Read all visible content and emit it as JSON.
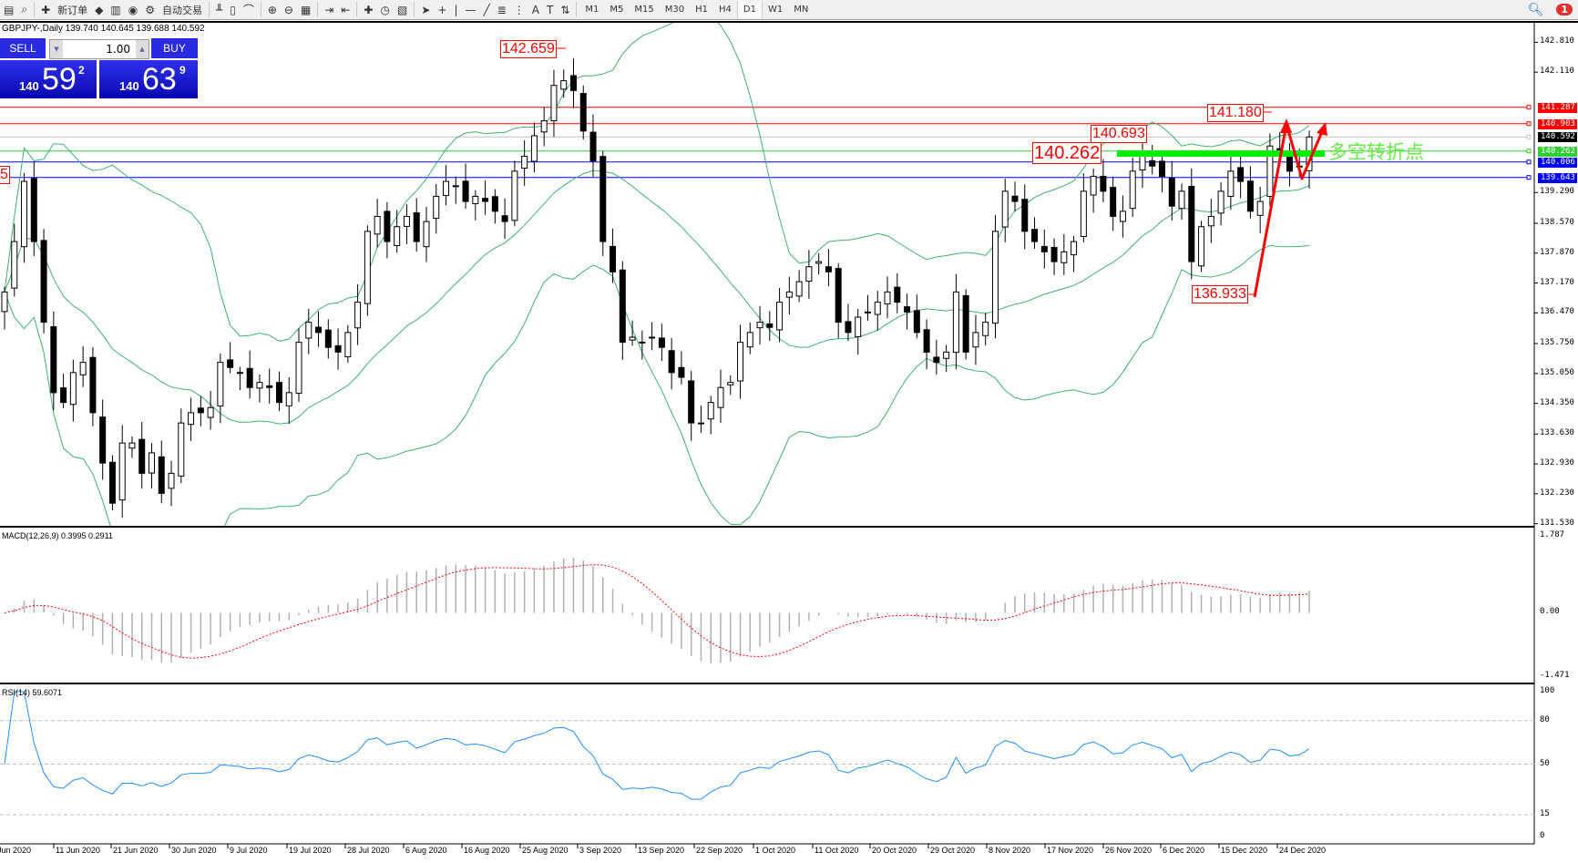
{
  "toolbar": {
    "icons": [
      "new-chart-icon",
      "profiles-icon",
      "new-order-icon",
      "navigator-icon",
      "market-watch-icon",
      "signals-icon",
      "autotrade-icon",
      "bar-chart-icon",
      "candlestick-icon",
      "line-chart-icon",
      "zoom-in-icon",
      "zoom-out-icon",
      "tile-icon",
      "autoscroll-icon",
      "chart-shift-icon",
      "indicators-icon",
      "periods-icon",
      "templates-icon",
      "cursor-icon",
      "crosshair-icon",
      "vertical-line-icon",
      "horizontal-line-icon",
      "trendline-icon",
      "fibonacci-icon",
      "fibo-fan-icon",
      "text-icon",
      "text-label-icon",
      "arrows-icon"
    ],
    "new_order": "新订单",
    "autotrade": "自动交易",
    "timeframes": [
      "M1",
      "M5",
      "M15",
      "M30",
      "H1",
      "H4",
      "D1",
      "W1",
      "MN"
    ],
    "active_timeframe": "D1",
    "notification_count": "1"
  },
  "chart": {
    "title": "GBPJPY-,Daily  139.740 140.645 139.688 140.592",
    "oneclick": {
      "sell_label": "SELL",
      "buy_label": "BUY",
      "lot": "1.00",
      "sell_prefix": "140",
      "sell_big": "59",
      "sell_sup": "2",
      "buy_prefix": "140",
      "buy_big": "63",
      "buy_sup": "9"
    },
    "price_axis": [
      "142.810",
      "142.110",
      "139.290",
      "138.570",
      "137.870",
      "137.170",
      "136.470",
      "135.750",
      "135.050",
      "134.350",
      "133.630",
      "132.930",
      "132.230",
      "131.530"
    ],
    "price_tags": [
      {
        "value": "141.287",
        "color": "#ff0000"
      },
      {
        "value": "140.903",
        "color": "#ff0000"
      },
      {
        "value": "140.592",
        "color": "#000000"
      },
      {
        "value": "140.262",
        "color": "#33cc33"
      },
      {
        "value": "140.006",
        "color": "#0000ff"
      },
      {
        "value": "139.643",
        "color": "#0000ff"
      }
    ],
    "hlines": [
      {
        "price": 141.287,
        "color": "#ff0000"
      },
      {
        "price": 140.903,
        "color": "#ff0000"
      },
      {
        "price": 140.592,
        "color": "#c0c0c0"
      },
      {
        "price": 140.262,
        "color": "#33cc33"
      },
      {
        "price": 140.006,
        "color": "#0000ff"
      },
      {
        "price": 139.643,
        "color": "#0000ff"
      }
    ],
    "annotations": {
      "high_label": "142.659",
      "pivot_label": "140.262",
      "recent_high_label": "140.693",
      "top_label": "141.180",
      "low_label": "136.933",
      "edge_label": "5",
      "turning_point": "多空转折点"
    },
    "colors": {
      "bands": "#3cb371",
      "bull": "#ffffff",
      "bear": "#000000",
      "arrow": "#ff0000",
      "pivot_bar": "#00ee00"
    },
    "closes": [
      136.96,
      138.14,
      139.55,
      138.14,
      136.25,
      134.6,
      134.37,
      135.07,
      135.31,
      134.13,
      132.95,
      132.01,
      133.42,
      133.42,
      132.71,
      133.19,
      132.24,
      132.71,
      133.89,
      134.13,
      134.13,
      134.25,
      135.31,
      135.19,
      135.07,
      134.72,
      134.84,
      134.72,
      134.37,
      134.6,
      135.78,
      136.25,
      136.01,
      135.66,
      135.55,
      136.01,
      136.72,
      138.38,
      138.73,
      138.14,
      138.49,
      138.73,
      138.14,
      138.61,
      139.2,
      139.55,
      139.44,
      139.08,
      139.2,
      139.08,
      138.85,
      138.61,
      139.79,
      140.14,
      140.62,
      140.97,
      141.8,
      141.91,
      141.68,
      140.73,
      140.03,
      138.14,
      137.43,
      135.78,
      135.9,
      135.78,
      135.9,
      135.66,
      135.07,
      134.96,
      133.89,
      133.89,
      134.37,
      134.72,
      134.84,
      135.78,
      136.01,
      136.25,
      136.13,
      136.72,
      136.96,
      137.2,
      137.55,
      137.67,
      137.43,
      136.25,
      136.01,
      136.37,
      136.49,
      136.72,
      136.96,
      136.72,
      136.49,
      136.01,
      135.55,
      135.31,
      135.55,
      136.96,
      135.55,
      136.01,
      136.25,
      138.38,
      139.32,
      139.08,
      138.38,
      138.14,
      137.9,
      137.67,
      137.9,
      138.14,
      139.32,
      139.67,
      139.32,
      138.73,
      138.85,
      139.79,
      140.14,
      139.91,
      139.67,
      138.97,
      139.32,
      137.67,
      138.49,
      138.73,
      139.32,
      139.79,
      139.55,
      138.85,
      139.08,
      140.38,
      140.26,
      139.79,
      139.91,
      140.592
    ],
    "dates": [
      "Jun 2020",
      "11 Jun 2020",
      "21 Jun 2020",
      "30 Jun 2020",
      "9 Jul 2020",
      "19 Jul 2020",
      "28 Jul 2020",
      "6 Aug 2020",
      "16 Aug 2020",
      "25 Aug 2020",
      "3 Sep 2020",
      "13 Sep 2020",
      "22 Sep 2020",
      "1 Oct 2020",
      "11 Oct 2020",
      "20 Oct 2020",
      "29 Oct 2020",
      "8 Nov 2020",
      "17 Nov 2020",
      "26 Nov 2020",
      "6 Dec 2020",
      "15 Dec 2020",
      "24 Dec 2020"
    ]
  },
  "macd": {
    "label": "MACD(12,26,9) 0.3995 0.2911",
    "axis": [
      "1.787",
      "0.00",
      "-1.471"
    ],
    "range": [
      -1.471,
      1.787
    ],
    "colors": {
      "histogram": "#b0b0b0",
      "signal": "#ff0000"
    }
  },
  "rsi": {
    "label": "RSI(14) 59.6071",
    "axis": [
      "100",
      "80",
      "50",
      "15",
      "0"
    ],
    "levels": [
      80,
      50,
      15
    ],
    "color": "#1e90ff"
  }
}
